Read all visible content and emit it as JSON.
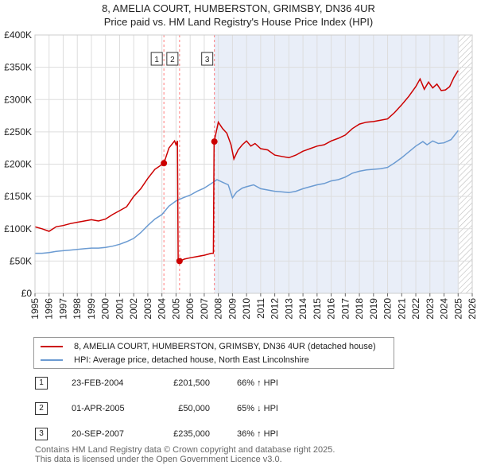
{
  "title_line1": "8, AMELIA COURT, HUMBERSTON, GRIMSBY, DN36 4UR",
  "title_line2": "Price paid vs. HM Land Registry's House Price Index (HPI)",
  "chart_data": {
    "type": "line",
    "x_range": [
      1995,
      2026
    ],
    "y_range": [
      0,
      400000
    ],
    "y_ticks": [
      {
        "value": 0,
        "label": "£0"
      },
      {
        "value": 50000,
        "label": "£50K"
      },
      {
        "value": 100000,
        "label": "£100K"
      },
      {
        "value": 150000,
        "label": "£150K"
      },
      {
        "value": 200000,
        "label": "£200K"
      },
      {
        "value": 250000,
        "label": "£250K"
      },
      {
        "value": 300000,
        "label": "£300K"
      },
      {
        "value": 350000,
        "label": "£350K"
      },
      {
        "value": 400000,
        "label": "£400K"
      }
    ],
    "x_ticks": [
      "1995",
      "1996",
      "1997",
      "1998",
      "1999",
      "2000",
      "2001",
      "2002",
      "2003",
      "2004",
      "2005",
      "2006",
      "2007",
      "2008",
      "2009",
      "2010",
      "2011",
      "2012",
      "2013",
      "2014",
      "2015",
      "2016",
      "2017",
      "2018",
      "2019",
      "2020",
      "2021",
      "2022",
      "2023",
      "2024",
      "2025",
      "2026"
    ],
    "shade_start": 2007.72,
    "hatch_start": 2025.05,
    "sale_markers": [
      {
        "label": "1",
        "x": 2004.14,
        "y": 201500
      },
      {
        "label": "2",
        "x": 2005.25,
        "y": 50000
      },
      {
        "label": "3",
        "x": 2007.72,
        "y": 235000
      }
    ],
    "series": [
      {
        "name": "8, AMELIA COURT, HUMBERSTON, GRIMSBY, DN36 4UR (detached house)",
        "color": "#cc0000",
        "points": [
          [
            1995,
            103000
          ],
          [
            1995.5,
            100000
          ],
          [
            1996,
            96000
          ],
          [
            1996.5,
            103000
          ],
          [
            1997,
            105000
          ],
          [
            1997.5,
            108000
          ],
          [
            1998,
            110000
          ],
          [
            1998.5,
            112000
          ],
          [
            1999,
            114000
          ],
          [
            1999.5,
            112000
          ],
          [
            2000,
            115000
          ],
          [
            2000.5,
            122000
          ],
          [
            2001,
            128000
          ],
          [
            2001.5,
            134000
          ],
          [
            2002,
            150000
          ],
          [
            2002.5,
            162000
          ],
          [
            2003,
            178000
          ],
          [
            2003.5,
            192000
          ],
          [
            2004.14,
            201500
          ],
          [
            2004.5,
            225000
          ],
          [
            2004.9,
            236000
          ],
          [
            2005.0,
            230000
          ],
          [
            2005.1,
            236000
          ],
          [
            2005.15,
            50000
          ],
          [
            2005.25,
            50000
          ],
          [
            2005.6,
            53000
          ],
          [
            2006,
            55000
          ],
          [
            2006.5,
            57000
          ],
          [
            2007,
            59000
          ],
          [
            2007.5,
            62000
          ],
          [
            2007.65,
            62000
          ],
          [
            2007.7,
            235000
          ],
          [
            2007.9,
            255000
          ],
          [
            2008.0,
            265000
          ],
          [
            2008.3,
            255000
          ],
          [
            2008.6,
            248000
          ],
          [
            2008.9,
            230000
          ],
          [
            2009.1,
            208000
          ],
          [
            2009.4,
            222000
          ],
          [
            2009.7,
            230000
          ],
          [
            2010.0,
            236000
          ],
          [
            2010.3,
            228000
          ],
          [
            2010.6,
            232000
          ],
          [
            2011,
            224000
          ],
          [
            2011.5,
            222000
          ],
          [
            2012,
            214000
          ],
          [
            2012.5,
            212000
          ],
          [
            2013,
            210000
          ],
          [
            2013.5,
            214000
          ],
          [
            2014,
            220000
          ],
          [
            2014.5,
            224000
          ],
          [
            2015,
            228000
          ],
          [
            2015.5,
            230000
          ],
          [
            2016,
            236000
          ],
          [
            2016.5,
            240000
          ],
          [
            2017,
            245000
          ],
          [
            2017.5,
            255000
          ],
          [
            2018,
            262000
          ],
          [
            2018.5,
            265000
          ],
          [
            2019,
            266000
          ],
          [
            2019.5,
            268000
          ],
          [
            2020,
            270000
          ],
          [
            2020.5,
            280000
          ],
          [
            2021,
            292000
          ],
          [
            2021.5,
            305000
          ],
          [
            2022,
            320000
          ],
          [
            2022.3,
            332000
          ],
          [
            2022.6,
            316000
          ],
          [
            2022.9,
            327000
          ],
          [
            2023.2,
            318000
          ],
          [
            2023.5,
            324000
          ],
          [
            2023.8,
            314000
          ],
          [
            2024.1,
            315000
          ],
          [
            2024.4,
            320000
          ],
          [
            2024.7,
            334000
          ],
          [
            2025.0,
            345000
          ]
        ]
      },
      {
        "name": "HPI: Average price, detached house, North East Lincolnshire",
        "color": "#6b9bd2",
        "points": [
          [
            1995,
            62000
          ],
          [
            1995.5,
            62000
          ],
          [
            1996,
            63000
          ],
          [
            1996.5,
            65000
          ],
          [
            1997,
            66000
          ],
          [
            1997.5,
            67000
          ],
          [
            1998,
            68000
          ],
          [
            1998.5,
            69000
          ],
          [
            1999,
            70000
          ],
          [
            1999.5,
            70000
          ],
          [
            2000,
            71000
          ],
          [
            2000.5,
            73000
          ],
          [
            2001,
            76000
          ],
          [
            2001.5,
            80000
          ],
          [
            2002,
            85000
          ],
          [
            2002.5,
            94000
          ],
          [
            2003,
            105000
          ],
          [
            2003.5,
            115000
          ],
          [
            2004,
            122000
          ],
          [
            2004.5,
            135000
          ],
          [
            2005,
            143000
          ],
          [
            2005.5,
            148000
          ],
          [
            2006,
            152000
          ],
          [
            2006.5,
            158000
          ],
          [
            2007,
            163000
          ],
          [
            2007.5,
            170000
          ],
          [
            2007.9,
            176000
          ],
          [
            2008.3,
            172000
          ],
          [
            2008.7,
            168000
          ],
          [
            2009.0,
            148000
          ],
          [
            2009.3,
            157000
          ],
          [
            2009.7,
            163000
          ],
          [
            2010.0,
            165000
          ],
          [
            2010.5,
            168000
          ],
          [
            2011,
            162000
          ],
          [
            2011.5,
            160000
          ],
          [
            2012,
            158000
          ],
          [
            2012.5,
            157000
          ],
          [
            2013,
            156000
          ],
          [
            2013.5,
            158000
          ],
          [
            2014,
            162000
          ],
          [
            2014.5,
            165000
          ],
          [
            2015,
            168000
          ],
          [
            2015.5,
            170000
          ],
          [
            2016,
            174000
          ],
          [
            2016.5,
            176000
          ],
          [
            2017,
            180000
          ],
          [
            2017.5,
            186000
          ],
          [
            2018,
            189000
          ],
          [
            2018.5,
            191000
          ],
          [
            2019,
            192000
          ],
          [
            2019.5,
            193000
          ],
          [
            2020,
            195000
          ],
          [
            2020.5,
            202000
          ],
          [
            2021,
            210000
          ],
          [
            2021.5,
            219000
          ],
          [
            2022,
            228000
          ],
          [
            2022.5,
            235000
          ],
          [
            2022.8,
            230000
          ],
          [
            2023.2,
            236000
          ],
          [
            2023.6,
            232000
          ],
          [
            2024,
            233000
          ],
          [
            2024.5,
            238000
          ],
          [
            2025.0,
            252000
          ]
        ]
      }
    ]
  },
  "legend": {
    "items": [
      {
        "label": "8, AMELIA COURT, HUMBERSTON, GRIMSBY, DN36 4UR (detached house)",
        "color": "#cc0000"
      },
      {
        "label": "HPI: Average price, detached house, North East Lincolnshire",
        "color": "#6b9bd2"
      }
    ]
  },
  "transactions": [
    {
      "num": "1",
      "date": "23-FEB-2004",
      "price": "£201,500",
      "hpi": "66% ↑ HPI"
    },
    {
      "num": "2",
      "date": "01-APR-2005",
      "price": "£50,000",
      "hpi": "65% ↓ HPI"
    },
    {
      "num": "3",
      "date": "20-SEP-2007",
      "price": "£235,000",
      "hpi": "36% ↑ HPI"
    }
  ],
  "footer": {
    "line1": "Contains HM Land Registry data © Crown copyright and database right 2025.",
    "line2": "This data is licensed under the Open Government Licence v3.0."
  }
}
